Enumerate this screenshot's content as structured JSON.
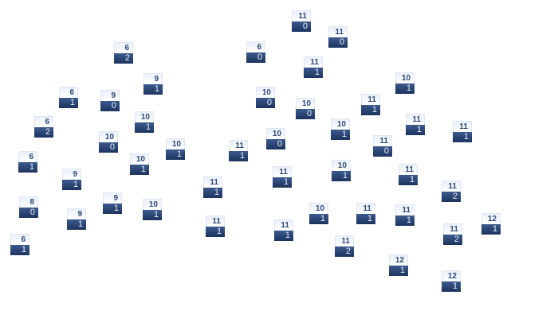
{
  "colors": {
    "header_bg": "#eef3fb",
    "header_text": "#2e4a78",
    "body_bg_top": "#3c5a8e",
    "body_bg_bottom": "#1c335e",
    "body_text": "#e8eef8"
  },
  "nodes": [
    {
      "top": "11",
      "bottom": "0"
    },
    {
      "top": "11",
      "bottom": "0"
    },
    {
      "top": "6",
      "bottom": "2"
    },
    {
      "top": "6",
      "bottom": "0"
    },
    {
      "top": "11",
      "bottom": "1"
    },
    {
      "top": "9",
      "bottom": "1"
    },
    {
      "top": "10",
      "bottom": "1"
    },
    {
      "top": "6",
      "bottom": "1"
    },
    {
      "top": "9",
      "bottom": "0"
    },
    {
      "top": "10",
      "bottom": "0"
    },
    {
      "top": "10",
      "bottom": "0"
    },
    {
      "top": "11",
      "bottom": "1"
    },
    {
      "top": "10",
      "bottom": "1"
    },
    {
      "top": "6",
      "bottom": "2"
    },
    {
      "top": "11",
      "bottom": "1"
    },
    {
      "top": "10",
      "bottom": "1"
    },
    {
      "top": "11",
      "bottom": "1"
    },
    {
      "top": "10",
      "bottom": "0"
    },
    {
      "top": "10",
      "bottom": "0"
    },
    {
      "top": "11",
      "bottom": "0"
    },
    {
      "top": "10",
      "bottom": "1"
    },
    {
      "top": "11",
      "bottom": "1"
    },
    {
      "top": "6",
      "bottom": "1"
    },
    {
      "top": "10",
      "bottom": "1"
    },
    {
      "top": "11",
      "bottom": "1"
    },
    {
      "top": "10",
      "bottom": "1"
    },
    {
      "top": "11",
      "bottom": "1"
    },
    {
      "top": "9",
      "bottom": "1"
    },
    {
      "top": "11",
      "bottom": "1"
    },
    {
      "top": "11",
      "bottom": "2"
    },
    {
      "top": "9",
      "bottom": "1"
    },
    {
      "top": "8",
      "bottom": "0"
    },
    {
      "top": "10",
      "bottom": "1"
    },
    {
      "top": "10",
      "bottom": "1"
    },
    {
      "top": "11",
      "bottom": "1"
    },
    {
      "top": "11",
      "bottom": "1"
    },
    {
      "top": "9",
      "bottom": "1"
    },
    {
      "top": "11",
      "bottom": "1"
    },
    {
      "top": "12",
      "bottom": "1"
    },
    {
      "top": "11",
      "bottom": "1"
    },
    {
      "top": "11",
      "bottom": "2"
    },
    {
      "top": "6",
      "bottom": "1"
    },
    {
      "top": "11",
      "bottom": "2"
    },
    {
      "top": "12",
      "bottom": "1"
    },
    {
      "top": "12",
      "bottom": "1"
    }
  ]
}
